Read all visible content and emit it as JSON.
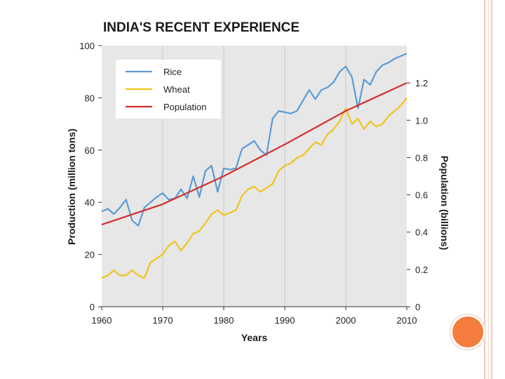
{
  "chart_data": {
    "type": "line",
    "title": "INDIA'S RECENT EXPERIENCE",
    "xlabel": "Years",
    "ylabel": "Production (million tons)",
    "y2label": "Population (billions)",
    "xlim": [
      1960,
      2010
    ],
    "ylim": [
      0,
      100
    ],
    "y2lim": [
      0,
      1.4
    ],
    "x_ticks": [
      "1960",
      "1970",
      "1980",
      "1990",
      "2000",
      "2010"
    ],
    "y_ticks": [
      "0",
      "20",
      "40",
      "60",
      "80",
      "100"
    ],
    "y2_ticks": [
      "0",
      "0.2",
      "0.4",
      "0.6",
      "0.8",
      "1.0",
      "1.2"
    ],
    "legend_position": "top-left",
    "series": [
      {
        "name": "Rice",
        "axis": "left",
        "color": "#5b9bd5",
        "x": [
          1960,
          1961,
          1962,
          1963,
          1964,
          1965,
          1966,
          1967,
          1968,
          1969,
          1970,
          1971,
          1972,
          1973,
          1974,
          1975,
          1976,
          1977,
          1978,
          1979,
          1980,
          1981,
          1982,
          1983,
          1984,
          1985,
          1986,
          1987,
          1988,
          1989,
          1990,
          1991,
          1992,
          1993,
          1994,
          1995,
          1996,
          1997,
          1998,
          1999,
          2000,
          2001,
          2002,
          2003,
          2004,
          2005,
          2006,
          2007,
          2008,
          2009,
          2010
        ],
        "values": [
          36.5,
          37.5,
          35.5,
          38,
          41,
          33,
          31,
          38,
          40,
          42,
          43.5,
          41,
          41.5,
          45,
          41.5,
          50,
          42,
          52,
          54,
          44,
          53,
          52.5,
          53,
          60.5,
          62,
          63.5,
          60,
          58,
          72,
          75,
          74.5,
          74,
          75,
          79,
          83,
          79.5,
          83,
          84,
          86,
          90,
          92,
          88,
          76,
          87,
          85,
          90,
          92.5,
          93.5,
          95,
          96,
          97
        ]
      },
      {
        "name": "Wheat",
        "axis": "left",
        "color": "#f0c419",
        "x": [
          1960,
          1961,
          1962,
          1963,
          1964,
          1965,
          1966,
          1967,
          1968,
          1969,
          1970,
          1971,
          1972,
          1973,
          1974,
          1975,
          1976,
          1977,
          1978,
          1979,
          1980,
          1981,
          1982,
          1983,
          1984,
          1985,
          1986,
          1987,
          1988,
          1989,
          1990,
          1991,
          1992,
          1993,
          1994,
          1995,
          1996,
          1997,
          1998,
          1999,
          2000,
          2001,
          2002,
          2003,
          2004,
          2005,
          2006,
          2007,
          2008,
          2009,
          2010
        ],
        "values": [
          11,
          12,
          14,
          12,
          12,
          14,
          12,
          11,
          17,
          18.5,
          20,
          23.5,
          25,
          21.5,
          24.5,
          28,
          29,
          32,
          35.5,
          37,
          35,
          36,
          37,
          42.5,
          45,
          46,
          44,
          45.5,
          47,
          52,
          54,
          55,
          57,
          58,
          60.5,
          63,
          62,
          66,
          68,
          71,
          76,
          70,
          72,
          68,
          71,
          69,
          70,
          73,
          75,
          77,
          80
        ]
      },
      {
        "name": "Population",
        "axis": "right",
        "color": "#d32f2f",
        "x": [
          1960,
          1970,
          1980,
          1990,
          2000,
          2010
        ],
        "values": [
          0.44,
          0.55,
          0.7,
          0.87,
          1.05,
          1.2
        ]
      }
    ]
  }
}
